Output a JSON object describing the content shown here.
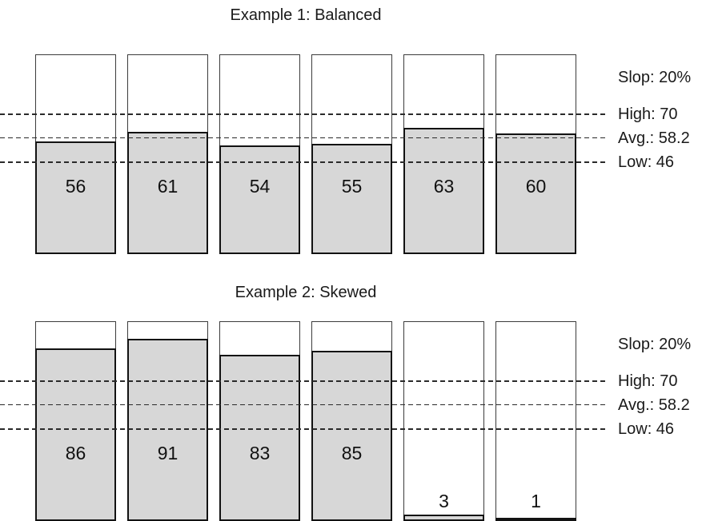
{
  "page": {
    "background": "#ffffff"
  },
  "chart_data": [
    {
      "type": "bar",
      "title": "Example 1: Balanced",
      "values": [
        56,
        61,
        54,
        55,
        63,
        60
      ],
      "ylim": [
        0,
        100
      ],
      "grid": false,
      "legend_position": "right",
      "bar_style": "capacity-outline-with-gray-fill",
      "annotations": [
        {
          "id": "slop",
          "label": "Slop: 20%"
        }
      ],
      "reference_lines": [
        {
          "id": "high",
          "label": "High: 70",
          "value": 70,
          "style": "dashed"
        },
        {
          "id": "avg",
          "label": "Avg.: 58.2",
          "value": 58.2,
          "style": "dashed"
        },
        {
          "id": "low",
          "label": "Low: 46",
          "value": 46,
          "style": "dashed"
        }
      ],
      "colors": {
        "bar_fill": "#d7d7d7",
        "bar_border": "#121212",
        "capacity_outline": "#3c3c3c",
        "reference_line": "#2a2a2a",
        "text": "#111111"
      }
    },
    {
      "type": "bar",
      "title": "Example 2: Skewed",
      "values": [
        86,
        91,
        83,
        85,
        3,
        1
      ],
      "ylim": [
        0,
        100
      ],
      "grid": false,
      "legend_position": "right",
      "bar_style": "capacity-outline-with-gray-fill",
      "annotations": [
        {
          "id": "slop",
          "label": "Slop: 20%"
        }
      ],
      "reference_lines": [
        {
          "id": "high",
          "label": "High: 70",
          "value": 70,
          "style": "dashed"
        },
        {
          "id": "avg",
          "label": "Avg.: 58.2",
          "value": 58.2,
          "style": "dashed"
        },
        {
          "id": "low",
          "label": "Low: 46",
          "value": 46,
          "style": "dashed"
        }
      ],
      "colors": {
        "bar_fill": "#d7d7d7",
        "bar_border": "#121212",
        "capacity_outline": "#3c3c3c",
        "reference_line": "#2a2a2a",
        "text": "#111111"
      }
    }
  ]
}
